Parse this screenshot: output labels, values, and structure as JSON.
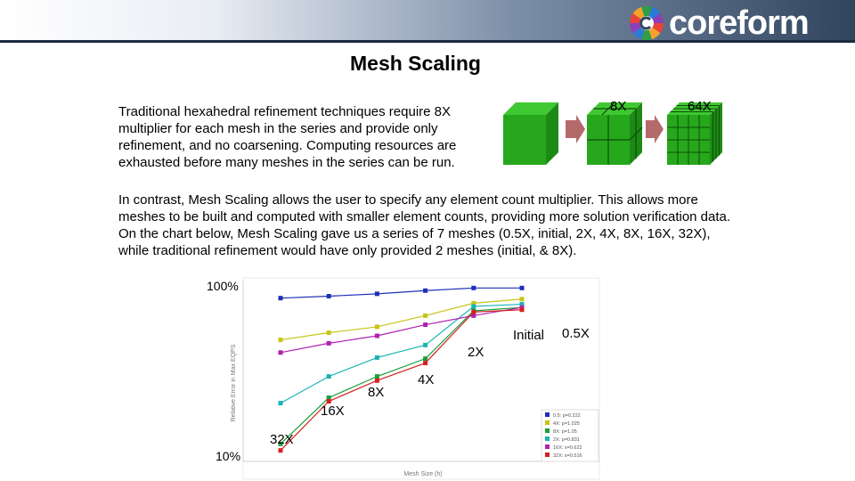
{
  "header": {
    "logo_text": "coreform",
    "logo_colors": [
      "#e8443a",
      "#f3a32b",
      "#2f9e44",
      "#2b7bd6",
      "#8b3fb8"
    ]
  },
  "slide": {
    "title": "Mesh Scaling",
    "paragraph_1": "Traditional hexahedral refinement techniques require 8X multiplier for each mesh in the series and provide only refinement, and no coarsening.  Computing resources are exhausted before many meshes in the series can be run.",
    "paragraph_2": "In contrast, Mesh Scaling allows the user to specify any element count multiplier.  This allows more meshes to be built and computed with smaller element counts, providing more solution verification data.  On the chart below, Mesh Scaling gave us a series of 7 meshes (0.5X, initial, 2X, 4X, 8X, 16X, 32X), while traditional refinement would have only provided 2 meshes (initial, & 8X)."
  },
  "refinement_graphic": {
    "labels": [
      "8X",
      "64X"
    ],
    "cube_color": "#26a81c",
    "arrow_color": "#b46a6a"
  },
  "chart_data": {
    "type": "line",
    "y_scale": "log",
    "ylim": [
      10,
      100
    ],
    "y_tick_labels": [
      "100%",
      "10%"
    ],
    "ylabel": "Relative Error in Max EQPS",
    "xlabel": "Mesh Size (h)",
    "x_points": 6,
    "series": [
      {
        "name": "0.5: p=0.222",
        "color": "#1f2fb8",
        "values": [
          80,
          82,
          84.5,
          88,
          91,
          91
        ]
      },
      {
        "name": "4X: p=1.025",
        "color": "#c7c418",
        "values": [
          47,
          51.5,
          55.5,
          64,
          75,
          79
        ]
      },
      {
        "name": "8X: p=1.05",
        "color": "#18a03c",
        "values": [
          12.5,
          22.5,
          29.5,
          37,
          68,
          71
        ]
      },
      {
        "name": "2X: p=0.831",
        "color": "#1ab3b3",
        "values": [
          21,
          29.5,
          37.5,
          44,
          72,
          74
        ]
      },
      {
        "name": "16X: s=0.622",
        "color": "#b020b0",
        "values": [
          40,
          45,
          49.5,
          57,
          64,
          71
        ]
      },
      {
        "name": "32X: s=0.516",
        "color": "#d42020",
        "values": [
          11.5,
          21.5,
          28,
          35,
          67,
          69
        ]
      }
    ],
    "annotations": [
      "Initial",
      "0.5X",
      "2X",
      "4X",
      "8X",
      "16X",
      "32X"
    ]
  }
}
